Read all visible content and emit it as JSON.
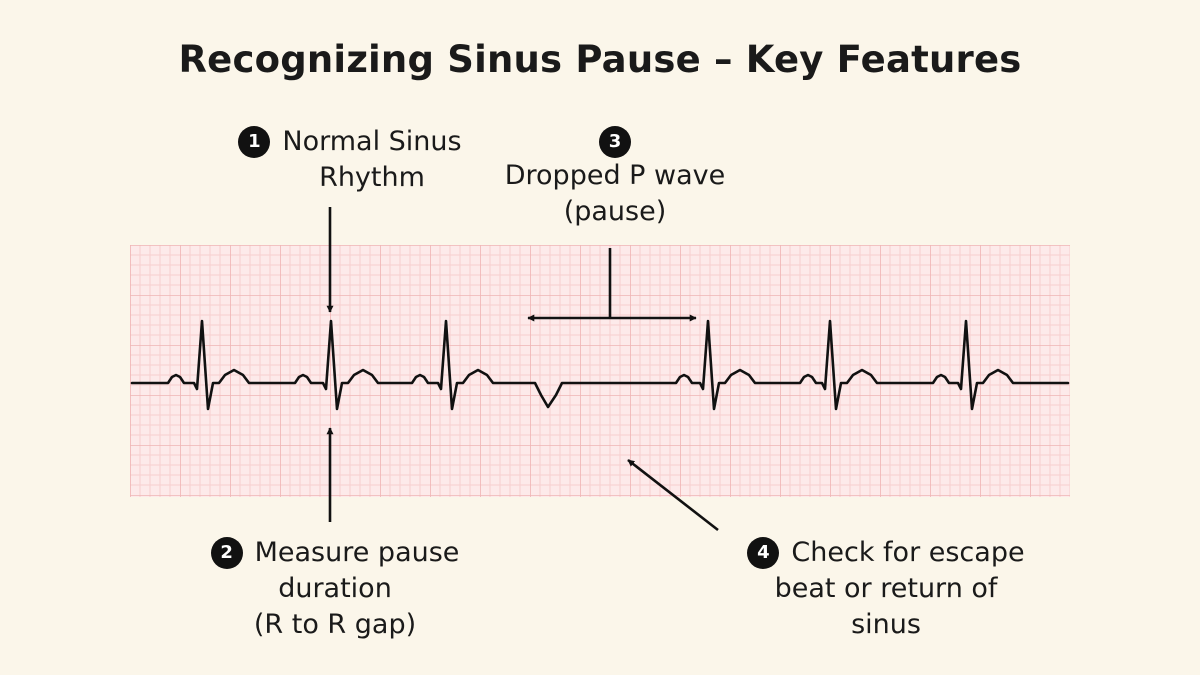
{
  "title": "Recognizing Sinus Pause – Key Features",
  "colors": {
    "background": "#fbf6ea",
    "grid_paper": "#fdeaea",
    "grid_minor": "#f6cfcf",
    "grid_major": "#efb4b4",
    "trace": "#111111",
    "badge": "#111111"
  },
  "callouts": [
    {
      "number": "1",
      "lines": [
        "Normal Sinus",
        "Rhythm"
      ]
    },
    {
      "number": "2",
      "lines": [
        "Measure pause",
        "duration",
        "(R to R gap)"
      ]
    },
    {
      "number": "3",
      "lines": [
        "Dropped P wave",
        "(pause)"
      ]
    },
    {
      "number": "4",
      "lines": [
        "Check for escape",
        "beat or return of",
        "sinus"
      ]
    }
  ]
}
